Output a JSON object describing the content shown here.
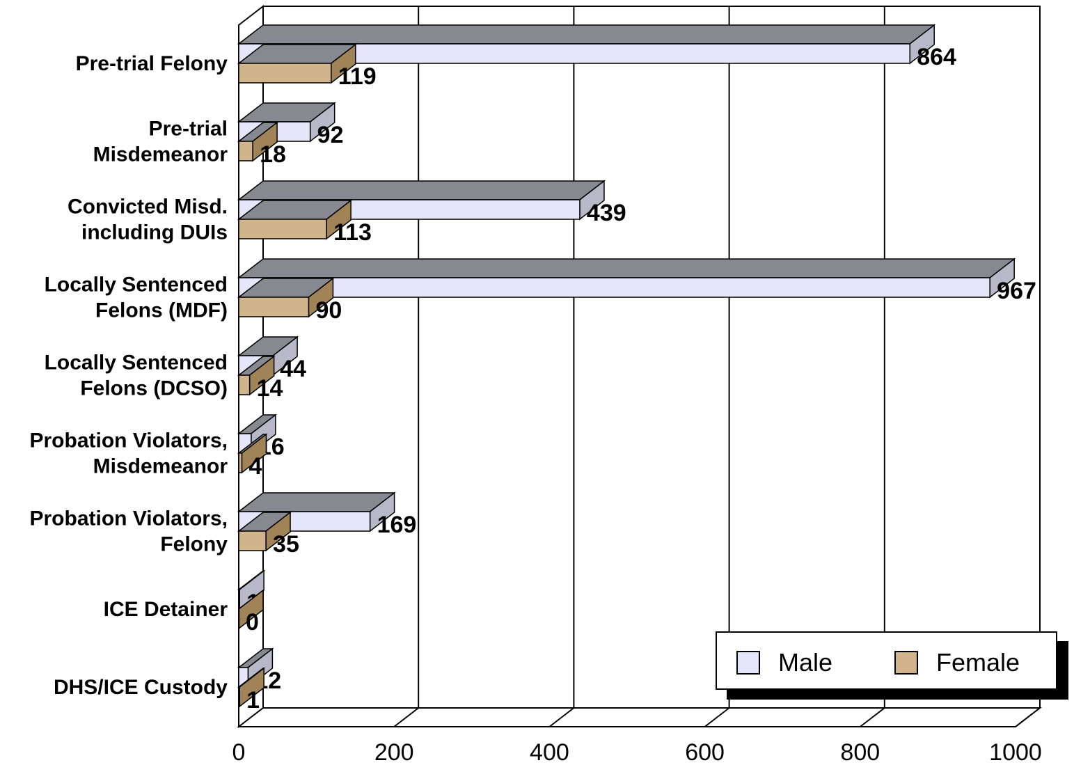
{
  "chart_data": {
    "type": "bar",
    "orientation": "horizontal",
    "style": "3d",
    "categories": [
      "Pre-trial Felony",
      "Pre-trial Misdemeanor",
      "Convicted Misd. including DUIs",
      "Locally Sentenced Felons (MDF)",
      "Locally Sentenced Felons (DCSO)",
      "Probation Violators, Misdemeanor",
      "Probation Violators, Felony",
      "ICE Detainer",
      "DHS/ICE Custody"
    ],
    "category_lines": [
      [
        "Pre-trial Felony"
      ],
      [
        "Pre-trial",
        "Misdemeanor"
      ],
      [
        "Convicted Misd.",
        "including DUIs"
      ],
      [
        "Locally Sentenced",
        "Felons (MDF)"
      ],
      [
        "Locally Sentenced",
        "Felons (DCSO)"
      ],
      [
        "Probation Violators,",
        "Misdemeanor"
      ],
      [
        "Probation Violators,",
        "Felony"
      ],
      [
        "ICE Detainer"
      ],
      [
        "DHS/ICE Custody"
      ]
    ],
    "series": [
      {
        "name": "Male",
        "color": "#e6e6fa",
        "values": [
          864,
          92,
          439,
          967,
          44,
          16,
          169,
          1,
          12
        ]
      },
      {
        "name": "Female",
        "color": "#d2b48c",
        "values": [
          119,
          18,
          113,
          90,
          14,
          4,
          35,
          0,
          1
        ]
      }
    ],
    "x_ticks": [
      "0",
      "200",
      "400",
      "600",
      "800",
      "1000"
    ],
    "xlim": [
      0,
      1000
    ],
    "grid": true,
    "legend_position": "bottom-right"
  }
}
